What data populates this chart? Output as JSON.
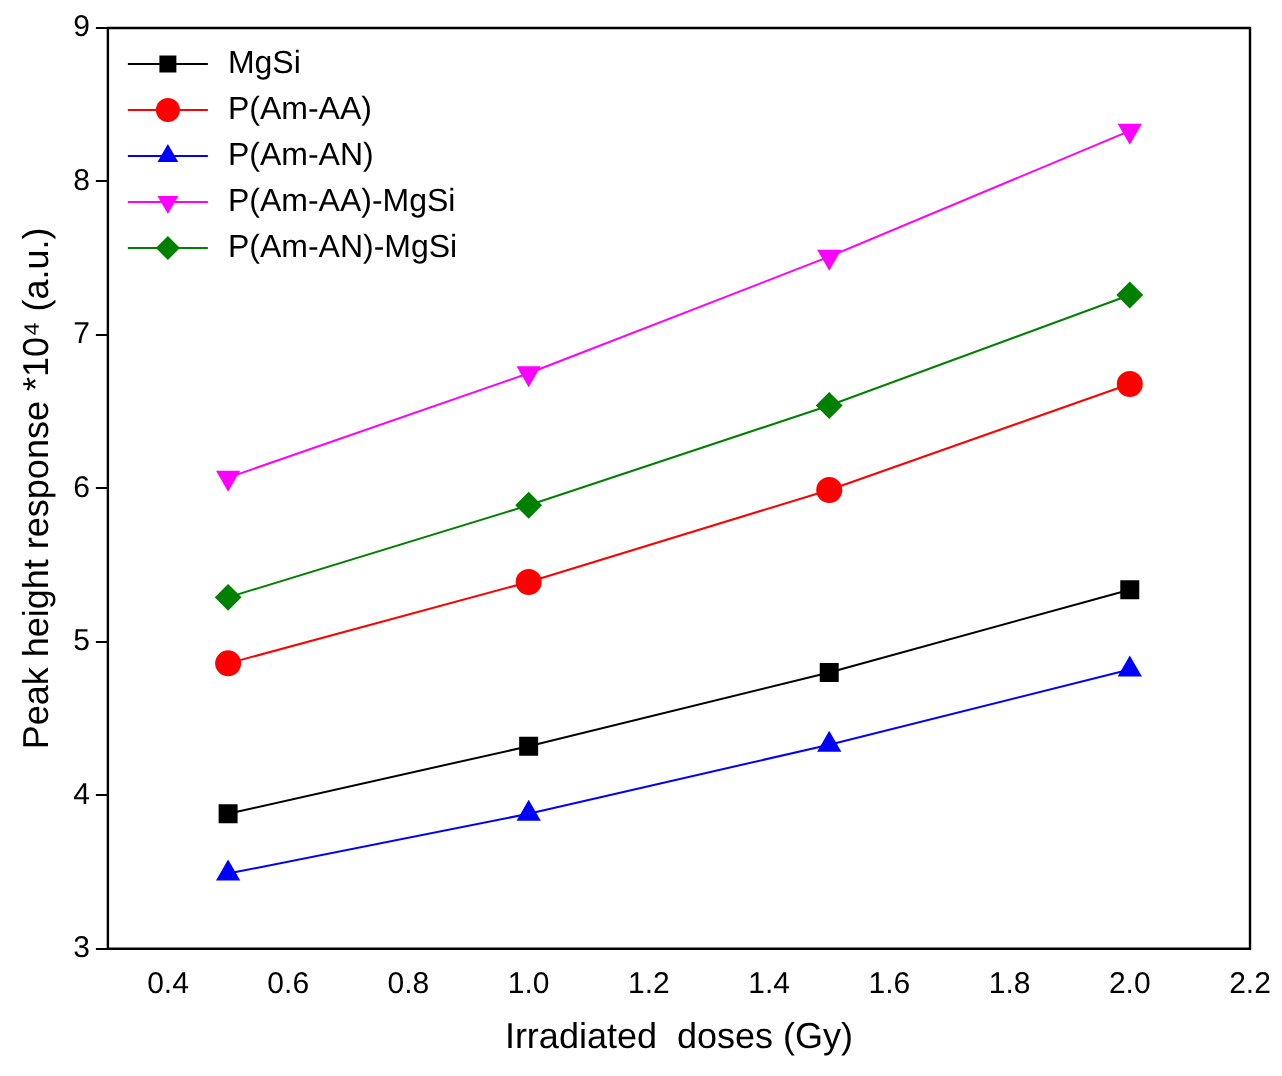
{
  "chart_data": {
    "type": "line",
    "xlabel": "Irradiated  doses (Gy)",
    "ylabel": "Peak height response *10⁴ (a.u.)",
    "x": [
      0.5,
      1.0,
      1.5,
      2.0
    ],
    "series": [
      {
        "name": "MgSi",
        "color": "#000000",
        "marker": "square",
        "values": [
          3.88,
          4.32,
          4.8,
          5.34
        ]
      },
      {
        "name": "P(Am-AA)",
        "color": "#ff0000",
        "marker": "circle",
        "values": [
          4.86,
          5.39,
          5.99,
          6.68
        ]
      },
      {
        "name": "P(Am-AN)",
        "color": "#0000ff",
        "marker": "triangle",
        "values": [
          3.49,
          3.88,
          4.33,
          4.82
        ]
      },
      {
        "name": "P(Am-AA)-MgSi",
        "color": "#ff00ff",
        "marker": "triangle-down",
        "values": [
          6.07,
          6.75,
          7.51,
          8.33
        ]
      },
      {
        "name": "P(Am-AN)-MgSi",
        "color": "#008000",
        "marker": "diamond",
        "values": [
          5.29,
          5.89,
          6.54,
          7.26
        ]
      }
    ],
    "xlim": [
      0.3,
      2.2
    ],
    "xticks": [
      0.4,
      0.6,
      0.8,
      {
        "value": 1,
        "label": "1.0"
      },
      1.2,
      1.4,
      1.6,
      1.8,
      {
        "value": 2,
        "label": "2.0"
      },
      2.2
    ],
    "ylim": [
      3,
      9
    ],
    "yticks": [
      3,
      4,
      5,
      6,
      7,
      8,
      9
    ],
    "grid": false,
    "legend": "top left",
    "line_style": "solid"
  }
}
